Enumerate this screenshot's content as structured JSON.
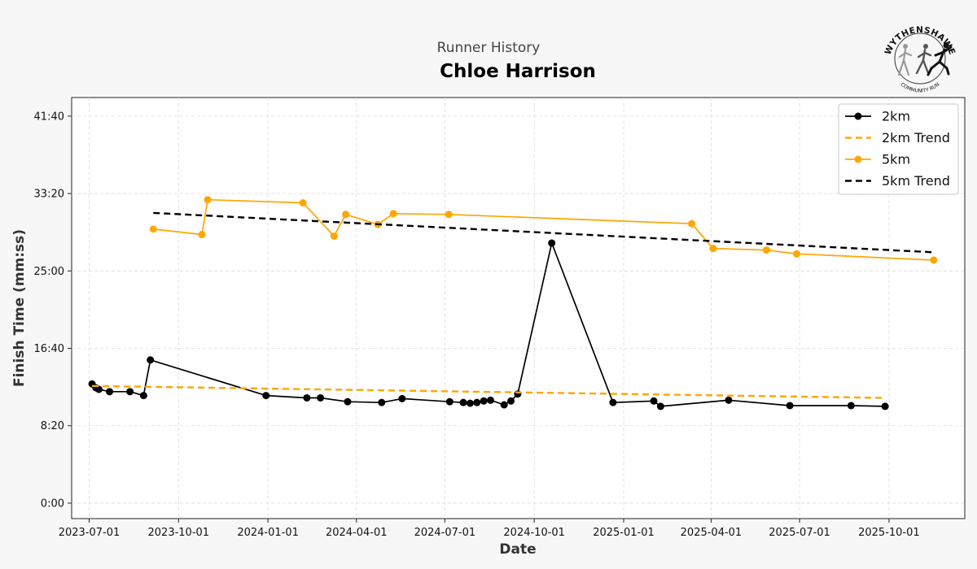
{
  "header": {
    "subtitle": "Runner History",
    "runner_name": "Chloe Harrison"
  },
  "logo": {
    "text_top": "WYTHENSHAWE",
    "text_bottom": "COMMUNITY RUN"
  },
  "chart_data": {
    "type": "line",
    "xlabel": "Date",
    "ylabel": "Finish Time (mm:ss)",
    "x_ticks": [
      "2023-07-01",
      "2023-10-01",
      "2024-01-01",
      "2024-04-01",
      "2024-07-01",
      "2024-10-01",
      "2025-01-01",
      "2025-04-01",
      "2025-07-01",
      "2025-10-01"
    ],
    "y_ticks": [
      "0:00",
      "8:20",
      "16:40",
      "25:00",
      "33:20",
      "41:40"
    ],
    "xlim": [
      "2023-06-13",
      "2025-12-18"
    ],
    "ylim_seconds": [
      -100,
      2620
    ],
    "grid": true,
    "legend_position": "top-right",
    "colors": {
      "black": "#000000",
      "orange": "#FFA500"
    },
    "series": [
      {
        "name": "2km",
        "style": "line-marker",
        "color": "#000000",
        "points": [
          [
            "2023-07-04",
            "12:50"
          ],
          [
            "2023-07-08",
            "12:25"
          ],
          [
            "2023-07-11",
            "12:15"
          ],
          [
            "2023-07-22",
            "12:00"
          ],
          [
            "2023-08-12",
            "12:00"
          ],
          [
            "2023-08-26",
            "11:35"
          ],
          [
            "2023-09-02",
            "15:25"
          ],
          [
            "2023-12-30",
            "11:35"
          ],
          [
            "2024-02-10",
            "11:20"
          ],
          [
            "2024-02-24",
            "11:20"
          ],
          [
            "2024-03-23",
            "10:55"
          ],
          [
            "2024-04-27",
            "10:50"
          ],
          [
            "2024-05-18",
            "11:15"
          ],
          [
            "2024-07-06",
            "10:55"
          ],
          [
            "2024-07-20",
            "10:50"
          ],
          [
            "2024-07-27",
            "10:45"
          ],
          [
            "2024-08-03",
            "10:50"
          ],
          [
            "2024-08-10",
            "11:00"
          ],
          [
            "2024-08-17",
            "11:05"
          ],
          [
            "2024-08-31",
            "10:35"
          ],
          [
            "2024-09-07",
            "11:00"
          ],
          [
            "2024-09-14",
            "11:45"
          ],
          [
            "2024-10-19",
            "28:00"
          ],
          [
            "2024-12-21",
            "10:50"
          ],
          [
            "2025-02-01",
            "11:00"
          ],
          [
            "2025-02-08",
            "10:25"
          ],
          [
            "2025-04-19",
            "11:05"
          ],
          [
            "2025-06-21",
            "10:30"
          ],
          [
            "2025-08-23",
            "10:30"
          ],
          [
            "2025-09-27",
            "10:25"
          ]
        ]
      },
      {
        "name": "2km Trend",
        "style": "dashed",
        "color": "#FFA500",
        "points": [
          [
            "2023-07-04",
            "12:37"
          ],
          [
            "2025-09-27",
            "11:20"
          ]
        ]
      },
      {
        "name": "5km",
        "style": "line-marker",
        "color": "#FFA500",
        "points": [
          [
            "2023-09-05",
            "29:30"
          ],
          [
            "2023-10-25",
            "28:55"
          ],
          [
            "2023-10-31",
            "32:40"
          ],
          [
            "2024-02-06",
            "32:20"
          ],
          [
            "2024-03-09",
            "28:45"
          ],
          [
            "2024-03-21",
            "31:05"
          ],
          [
            "2024-04-23",
            "30:00"
          ],
          [
            "2024-05-09",
            "31:10"
          ],
          [
            "2024-07-05",
            "31:05"
          ],
          [
            "2025-03-12",
            "30:05"
          ],
          [
            "2025-04-03",
            "27:25"
          ],
          [
            "2025-05-28",
            "27:15"
          ],
          [
            "2025-06-28",
            "26:50"
          ],
          [
            "2025-11-16",
            "26:10"
          ]
        ]
      },
      {
        "name": "5km Trend",
        "style": "dashed",
        "color": "#000000",
        "points": [
          [
            "2023-09-05",
            "31:15"
          ],
          [
            "2025-11-16",
            "27:00"
          ]
        ]
      }
    ]
  }
}
